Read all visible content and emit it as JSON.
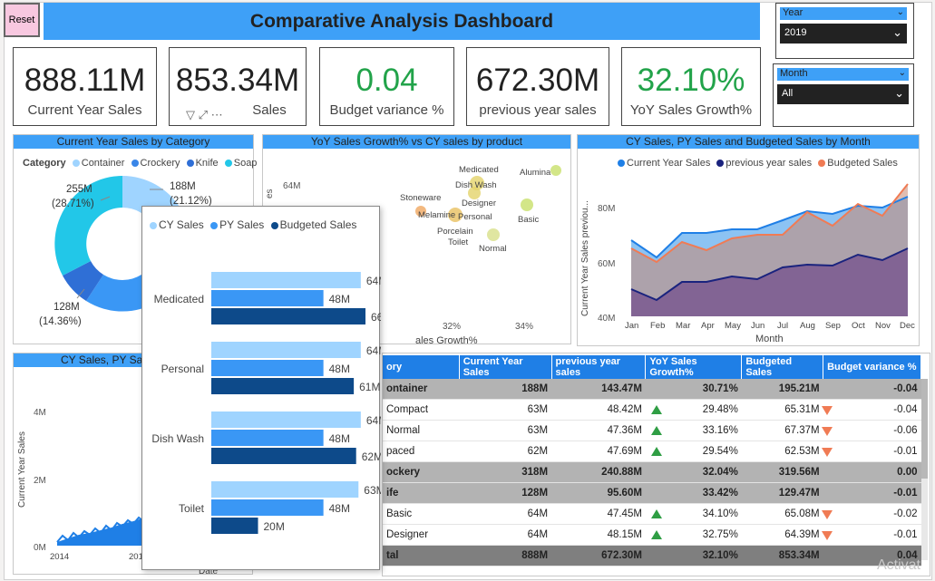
{
  "header": {
    "reset_label": "Reset",
    "title": "Comparative Analysis Dashboard"
  },
  "slicers": {
    "year": {
      "label": "Year",
      "value": "2019"
    },
    "month": {
      "label": "Month",
      "value": "All"
    }
  },
  "kpis": [
    {
      "value": "888.11M",
      "label": "Current Year Sales",
      "color": "#222222"
    },
    {
      "value": "853.34M",
      "label": "Sales",
      "color": "#222222"
    },
    {
      "value": "0.04",
      "label": "Budget variance %",
      "color": "#22a34a"
    },
    {
      "value": "672.30M",
      "label": "previous year sales",
      "color": "#222222"
    },
    {
      "value": "32.10%",
      "label": "YoY Sales Growth%",
      "color": "#22a34a"
    }
  ],
  "donut": {
    "title": "Current Year Sales by Category",
    "legend_title": "Category",
    "legend": [
      {
        "name": "Container",
        "color": "#9fd4ff"
      },
      {
        "name": "Crockery",
        "color": "#3a86e8"
      },
      {
        "name": "Knife",
        "color": "#2f6fd6"
      },
      {
        "name": "Soap",
        "color": "#22c7e8"
      }
    ],
    "labels": {
      "a_val": "255M",
      "a_pct": "(28.71%)",
      "b_val": "188M",
      "b_pct": "(21.12%)",
      "c_val": "128M",
      "c_pct": "(14.36%)"
    }
  },
  "scatter": {
    "title": "YoY Sales Growth% vs CY sales by product",
    "ytick": "64M",
    "xticks": [
      "32%",
      "34%"
    ],
    "xlabel": "ales Growth%",
    "ylabel": "es",
    "points": [
      "Medicated",
      "Alumina",
      "Dish Wash",
      "Stoneware",
      "Designer",
      "Melamine",
      "Personal",
      "Basic",
      "Porcelain",
      "Toilet",
      "Normal"
    ]
  },
  "area": {
    "title": "CY Sales, PY Sales and Budgeted Sales by Month",
    "legend": [
      {
        "name": "Current Year Sales",
        "color": "#1f7fe6"
      },
      {
        "name": "previous year sales",
        "color": "#1a237e"
      },
      {
        "name": "Budgeted Sales",
        "color": "#f07b54"
      }
    ],
    "ylabel": "Current Year Sales previou...",
    "yticks": [
      "80M",
      "60M",
      "40M"
    ],
    "months": [
      "Jan",
      "Feb",
      "Mar",
      "Apr",
      "May",
      "Jun",
      "Jul",
      "Aug",
      "Sep",
      "Oct",
      "Nov",
      "Dec"
    ],
    "xlabel": "Month"
  },
  "trend": {
    "title": "CY Sales, PY Sa",
    "ylabel": "Current Year Sales",
    "yticks": [
      "4M",
      "2M",
      "0M"
    ],
    "xticks": [
      "2014",
      "201"
    ],
    "xlabel": "Date"
  },
  "tooltip": {
    "legend": [
      {
        "name": "CY Sales",
        "color": "#9fd4ff"
      },
      {
        "name": "PY Sales",
        "color": "#3a97f5"
      },
      {
        "name": "Budgeted Sales",
        "color": "#0d4a8a"
      }
    ],
    "rows": [
      {
        "name": "Medicated",
        "cy": "64M",
        "py": "48M",
        "bud": "66M"
      },
      {
        "name": "Personal",
        "cy": "64M",
        "py": "48M",
        "bud": "61M"
      },
      {
        "name": "Dish Wash",
        "cy": "64M",
        "py": "48M",
        "bud": "62M"
      },
      {
        "name": "Toilet",
        "cy": "63M",
        "py": "48M",
        "bud": "20M"
      }
    ]
  },
  "matrix": {
    "headers": [
      "ory",
      "Current Year Sales",
      "previous year sales",
      "YoY Sales Growth%",
      "Budgeted Sales",
      "Budget variance %"
    ],
    "rows": [
      {
        "type": "grp",
        "cat": "ontainer",
        "cy": "188M",
        "py": "143.47M",
        "yoy": "30.71%",
        "bud": "195.21M",
        "var": "-0.04",
        "up": "",
        "dn": ""
      },
      {
        "type": "sub",
        "cat": "Compact",
        "cy": "63M",
        "py": "48.42M",
        "yoy": "29.48%",
        "bud": "65.31M",
        "var": "-0.04",
        "up": "y",
        "dn": "y"
      },
      {
        "type": "sub",
        "cat": "Normal",
        "cy": "63M",
        "py": "47.36M",
        "yoy": "33.16%",
        "bud": "67.37M",
        "var": "-0.06",
        "up": "y",
        "dn": "y"
      },
      {
        "type": "sub",
        "cat": "paced",
        "cy": "62M",
        "py": "47.69M",
        "yoy": "29.54%",
        "bud": "62.53M",
        "var": "-0.01",
        "up": "y",
        "dn": "y"
      },
      {
        "type": "grp",
        "cat": "ockery",
        "cy": "318M",
        "py": "240.88M",
        "yoy": "32.04%",
        "bud": "319.56M",
        "var": "0.00",
        "up": "",
        "dn": ""
      },
      {
        "type": "grp",
        "cat": "ife",
        "cy": "128M",
        "py": "95.60M",
        "yoy": "33.42%",
        "bud": "129.47M",
        "var": "-0.01",
        "up": "",
        "dn": ""
      },
      {
        "type": "sub",
        "cat": "Basic",
        "cy": "64M",
        "py": "47.45M",
        "yoy": "34.10%",
        "bud": "65.08M",
        "var": "-0.02",
        "up": "y",
        "dn": "y"
      },
      {
        "type": "sub",
        "cat": "Designer",
        "cy": "64M",
        "py": "48.15M",
        "yoy": "32.75%",
        "bud": "64.39M",
        "var": "-0.01",
        "up": "y",
        "dn": "y"
      }
    ],
    "total": {
      "cat": "tal",
      "cy": "888M",
      "py": "672.30M",
      "yoy": "32.10%",
      "bud": "853.34M",
      "var": "0.04"
    }
  },
  "watermark": "Activat"
}
